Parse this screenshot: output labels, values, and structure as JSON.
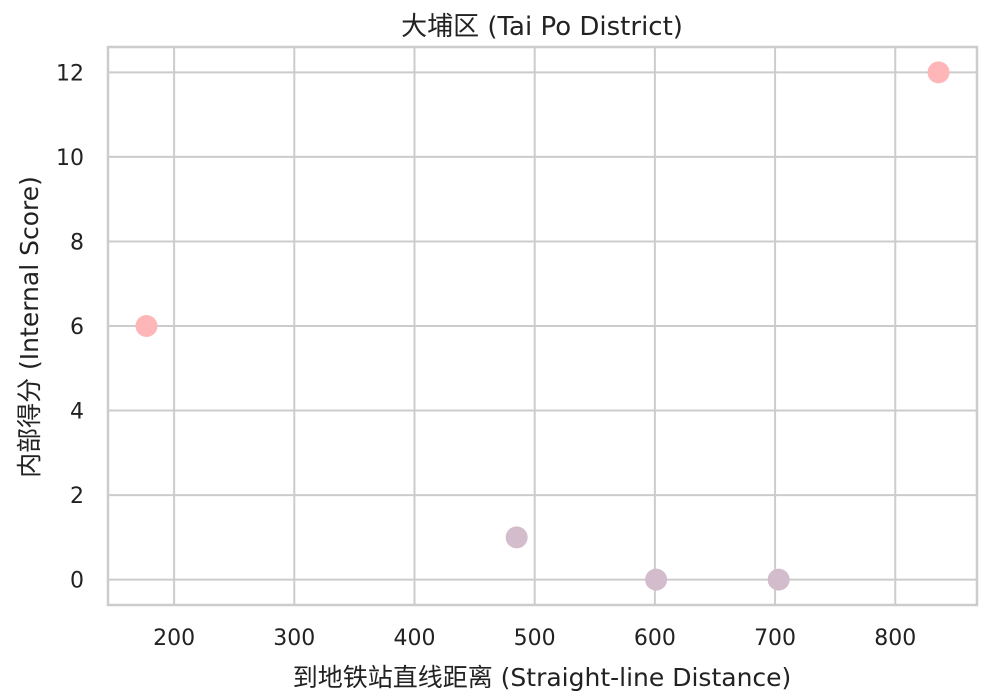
{
  "chart_data": {
    "type": "scatter",
    "title": "大埔区 (Tai Po District)",
    "xlabel": "到地铁站直线距离 (Straight-line Distance)",
    "ylabel": "内部得分 (Internal Score)",
    "xlim": [
      145,
      868
    ],
    "ylim": [
      -0.6,
      12.6
    ],
    "x_ticks": [
      200,
      300,
      400,
      500,
      600,
      700,
      800
    ],
    "y_ticks": [
      0,
      2,
      4,
      6,
      8,
      10,
      12
    ],
    "grid": true,
    "points": [
      {
        "x": 177,
        "y": 6,
        "color": "#ffb6b9"
      },
      {
        "x": 485,
        "y": 1,
        "color": "#d3bccc"
      },
      {
        "x": 601,
        "y": 0,
        "color": "#d3bccc"
      },
      {
        "x": 703,
        "y": 0,
        "color": "#d3bccc"
      },
      {
        "x": 836,
        "y": 12,
        "color": "#ffb6b9"
      }
    ]
  }
}
